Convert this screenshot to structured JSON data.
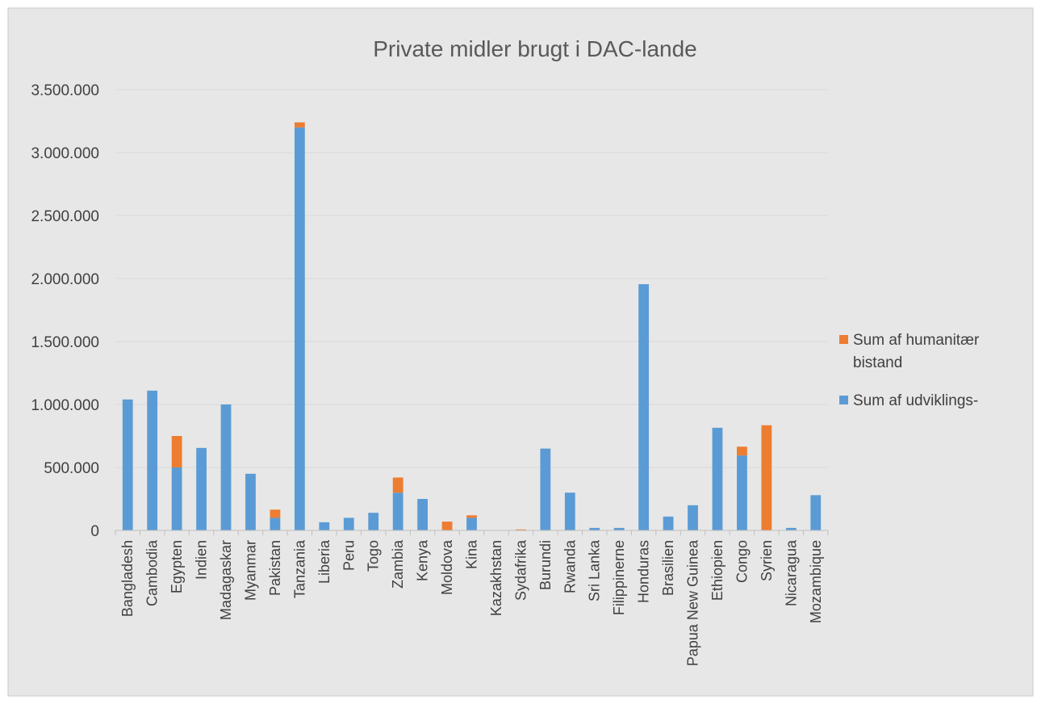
{
  "chart_data": {
    "type": "bar",
    "stacked": true,
    "title": "Private midler brugt i DAC-lande",
    "xlabel": "",
    "ylabel": "",
    "ylim": [
      0,
      3500000
    ],
    "y_ticks": [
      0,
      500000,
      1000000,
      1500000,
      2000000,
      2500000,
      3000000,
      3500000
    ],
    "y_tick_labels": [
      "0",
      "500.000",
      "1.000.000",
      "1.500.000",
      "2.000.000",
      "2.500.000",
      "3.000.000",
      "3.500.000"
    ],
    "grid": true,
    "legend_position": "right",
    "categories": [
      "Bangladesh",
      "Cambodia",
      "Egypten",
      "Indien",
      "Madagaskar",
      "Myanmar",
      "Pakistan",
      "Tanzania",
      "Liberia",
      "Peru",
      "Togo",
      "Zambia",
      "Kenya",
      "Moldova",
      "Kina",
      "Kazakhstan",
      "Sydafrika",
      "Burundi",
      "Rwanda",
      "Sri Lanka",
      "Filippinerne",
      "Honduras",
      "Brasilien",
      "Papua New Guinea",
      "Ethiopien",
      "Congo",
      "Syrien",
      "Nicaragua",
      "Mozambique"
    ],
    "series": [
      {
        "name": "Sum af udviklings-",
        "color": "#5b9bd5",
        "values": [
          1040000,
          1110000,
          500000,
          655000,
          1000000,
          450000,
          100000,
          3200000,
          65000,
          100000,
          140000,
          300000,
          250000,
          0,
          100000,
          0,
          0,
          650000,
          300000,
          20000,
          20000,
          1955000,
          110000,
          200000,
          815000,
          595000,
          0,
          20000,
          280000
        ]
      },
      {
        "name": "Sum af humanitær bistand",
        "legend_lines": [
          "Sum af humanitær",
          "bistand"
        ],
        "color": "#ed7d31",
        "values": [
          0,
          0,
          250000,
          0,
          0,
          0,
          65000,
          40000,
          0,
          0,
          0,
          120000,
          0,
          70000,
          20000,
          0,
          8000,
          0,
          0,
          0,
          0,
          0,
          0,
          0,
          0,
          70000,
          835000,
          0,
          0
        ]
      }
    ]
  },
  "colors": {
    "background": "#e7e7e7",
    "gridline": "#d9d9d9",
    "axis": "#bfbfbf",
    "text": "#404040",
    "title": "#595959"
  }
}
